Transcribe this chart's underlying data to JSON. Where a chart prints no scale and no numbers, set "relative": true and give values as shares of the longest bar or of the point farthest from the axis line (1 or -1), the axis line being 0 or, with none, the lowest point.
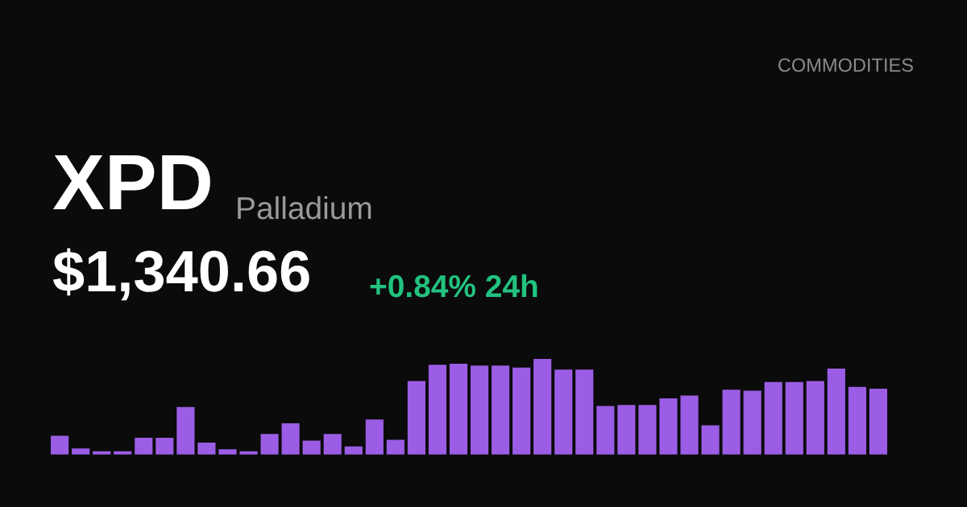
{
  "chart_data": {
    "type": "bar",
    "title": "XPD",
    "subtitle": "Palladium",
    "annotations": [
      "COMMODITIES",
      "$1,340.66",
      "+0.84% 24h"
    ],
    "relative": true,
    "color": "#9b5de5",
    "categories": [
      null,
      null,
      null,
      null,
      null,
      null,
      null,
      null,
      null,
      null,
      null,
      null,
      null,
      null,
      null,
      null,
      null,
      null,
      null,
      null,
      null,
      null,
      null,
      null,
      null,
      null,
      null,
      null,
      null,
      null,
      null,
      null,
      null,
      null,
      null,
      null,
      null,
      null,
      null,
      null
    ],
    "values": [
      0.2,
      0.07,
      0.04,
      0.04,
      0.18,
      0.18,
      0.5,
      0.13,
      0.06,
      0.04,
      0.22,
      0.33,
      0.15,
      0.22,
      0.09,
      0.37,
      0.16,
      0.77,
      0.94,
      0.95,
      0.93,
      0.93,
      0.91,
      1,
      0.89,
      0.89,
      0.51,
      0.52,
      0.52,
      0.59,
      0.62,
      0.31,
      0.68,
      0.67,
      0.76,
      0.76,
      0.77,
      0.9,
      0.71,
      0.69
    ]
  }
}
